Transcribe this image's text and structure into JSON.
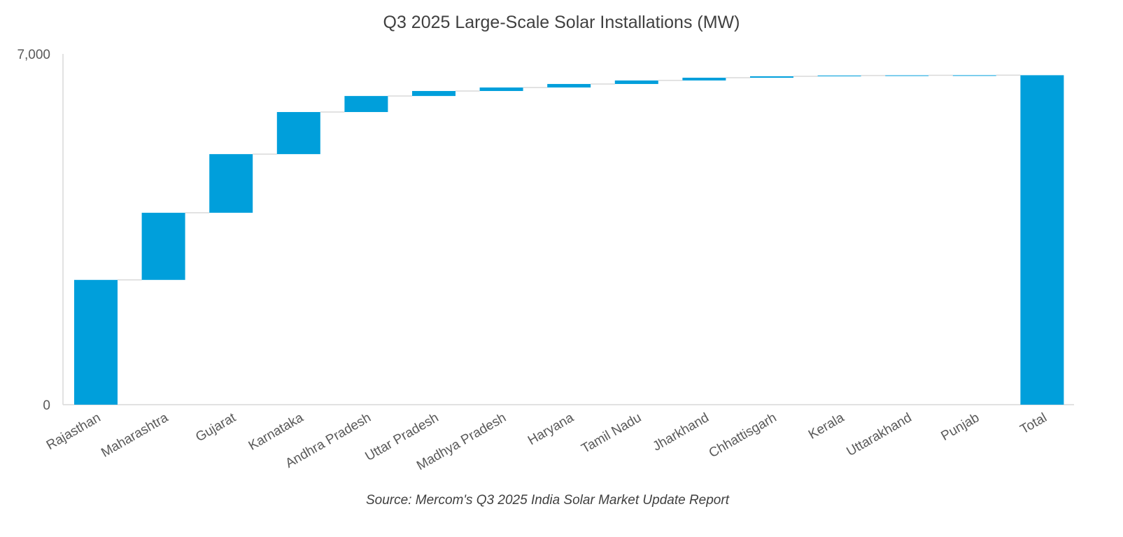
{
  "chart_data": {
    "type": "waterfall",
    "title": "Q3 2025 Large-Scale Solar Installations (MW)",
    "source": "Source: Mercom's Q3 2025 India Solar Market Update Report",
    "categories": [
      "Rajasthan",
      "Maharashtra",
      "Gujarat",
      "Karnataka",
      "Andhra Pradesh",
      "Uttar Pradesh",
      "Madhya Pradesh",
      "Haryana",
      "Tamil Nadu",
      "Jharkhand",
      "Chhattisgarh",
      "Kerala",
      "Uttarakhand",
      "Punjab",
      "Total"
    ],
    "values": [
      2490,
      1340,
      1170,
      840,
      320,
      100,
      70,
      70,
      70,
      55,
      28,
      15,
      5,
      2,
      6575
    ],
    "total_category": "Total",
    "ylim": [
      0,
      7000
    ],
    "yticks": [
      "0",
      "7,000"
    ],
    "grid": false,
    "bar_color": "#009FDB",
    "connector_color": "#D9D9D9"
  }
}
